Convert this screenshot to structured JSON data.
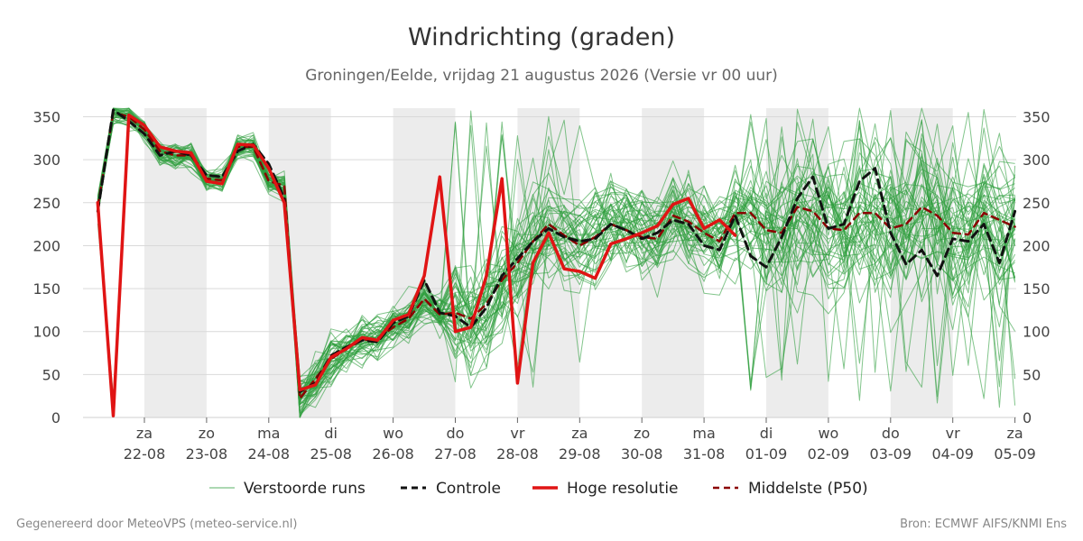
{
  "title": "Windrichting (graden)",
  "subtitle": "Groningen/Eelde, vrijdag 21 augustus 2026 (Versie vr 00 uur)",
  "footer_left": "Gegenereerd door MeteoVPS (meteo-service.nl)",
  "footer_right": "Bron: ECMWF AIFS/KNMI Ens",
  "colors": {
    "ensemble": "#2e9e3e",
    "control": "#111111",
    "high_res": "#e01414",
    "median": "#8b0000",
    "weekend_band": "#ececec",
    "grid": "#d9d9d9"
  },
  "legend": [
    {
      "label": "Verstoorde runs",
      "style": "thin-green"
    },
    {
      "label": "Controle",
      "style": "dashed-black"
    },
    {
      "label": "Hoge resolutie",
      "style": "solid-red"
    },
    {
      "label": "Middelste (P50)",
      "style": "dashed-darkred"
    }
  ],
  "chart_data": {
    "type": "line",
    "ylim": [
      0,
      360
    ],
    "y_ticks": [
      0,
      50,
      100,
      150,
      200,
      250,
      300,
      350
    ],
    "xlim_days": [
      -0.75,
      14.0
    ],
    "x_ticks": [
      {
        "day": "za",
        "date": "22-08",
        "offset": 0
      },
      {
        "day": "zo",
        "date": "23-08",
        "offset": 1
      },
      {
        "day": "ma",
        "date": "24-08",
        "offset": 2
      },
      {
        "day": "di",
        "date": "25-08",
        "offset": 3
      },
      {
        "day": "wo",
        "date": "26-08",
        "offset": 4
      },
      {
        "day": "do",
        "date": "27-08",
        "offset": 5
      },
      {
        "day": "vr",
        "date": "28-08",
        "offset": 6
      },
      {
        "day": "za",
        "date": "29-08",
        "offset": 7
      },
      {
        "day": "zo",
        "date": "30-08",
        "offset": 8
      },
      {
        "day": "ma",
        "date": "31-08",
        "offset": 9
      },
      {
        "day": "di",
        "date": "01-09",
        "offset": 10
      },
      {
        "day": "wo",
        "date": "02-09",
        "offset": 11
      },
      {
        "day": "do",
        "date": "03-09",
        "offset": 12
      },
      {
        "day": "vr",
        "date": "04-09",
        "offset": 13
      },
      {
        "day": "za",
        "date": "05-09",
        "offset": 14
      }
    ],
    "shaded_bands": [
      [
        0,
        1
      ],
      [
        2,
        3
      ],
      [
        4,
        5
      ],
      [
        6,
        7
      ],
      [
        8,
        9
      ],
      [
        10,
        11
      ],
      [
        12,
        13
      ]
    ],
    "series": [
      {
        "name": "Hoge resolutie",
        "kind": "high_res",
        "x": [
          -0.75,
          -0.5,
          -0.25,
          0,
          0.25,
          0.5,
          0.75,
          1,
          1.25,
          1.5,
          1.75,
          2,
          2.25,
          2.5,
          2.75,
          3,
          3.25,
          3.5,
          3.75,
          4,
          4.25,
          4.5,
          4.75,
          5,
          5.25,
          5.5,
          5.75,
          6,
          6.25,
          6.5,
          6.75,
          7,
          7.25,
          7.5,
          7.75,
          8,
          8.25,
          8.5,
          8.75,
          9,
          9.25,
          9.5
        ],
        "y": [
          250,
          2,
          352,
          340,
          315,
          310,
          308,
          275,
          272,
          318,
          317,
          290,
          250,
          32,
          38,
          70,
          80,
          93,
          90,
          113,
          120,
          165,
          280,
          100,
          105,
          165,
          278,
          40,
          180,
          215,
          173,
          170,
          162,
          202,
          208,
          215,
          223,
          248,
          255,
          220,
          230,
          212
        ]
      },
      {
        "name": "Controle",
        "kind": "control",
        "x": [
          -0.75,
          -0.5,
          -0.25,
          0,
          0.25,
          0.5,
          0.75,
          1,
          1.25,
          1.5,
          1.75,
          2,
          2.25,
          2.5,
          2.75,
          3,
          3.25,
          3.5,
          3.75,
          4,
          4.25,
          4.5,
          4.75,
          5,
          5.25,
          5.5,
          5.75,
          6,
          6.25,
          6.5,
          6.75,
          7,
          7.25,
          7.5,
          7.75,
          8,
          8.25,
          8.5,
          8.75,
          9,
          9.25,
          9.5,
          9.75,
          10,
          10.25,
          10.5,
          10.75,
          11,
          11.25,
          11.5,
          11.75,
          12,
          12.25,
          12.5,
          12.75,
          13,
          13.25,
          13.5,
          13.75,
          14
        ],
        "y": [
          240,
          358,
          345,
          330,
          305,
          310,
          305,
          282,
          280,
          310,
          318,
          295,
          255,
          30,
          40,
          72,
          82,
          90,
          88,
          110,
          118,
          160,
          122,
          118,
          105,
          128,
          165,
          185,
          205,
          220,
          210,
          205,
          208,
          225,
          218,
          208,
          215,
          230,
          225,
          200,
          195,
          235,
          188,
          175,
          210,
          255,
          280,
          220,
          225,
          275,
          290,
          215,
          178,
          195,
          165,
          208,
          205,
          225,
          180,
          240
        ]
      },
      {
        "name": "Middelste (P50)",
        "kind": "median",
        "x": [
          -0.75,
          -0.5,
          -0.25,
          0,
          0.25,
          0.5,
          0.75,
          1,
          1.25,
          1.5,
          1.75,
          2,
          2.25,
          2.5,
          2.75,
          3,
          3.25,
          3.5,
          3.75,
          4,
          4.25,
          4.5,
          4.75,
          5,
          5.25,
          5.5,
          5.75,
          6,
          6.25,
          6.5,
          6.75,
          7,
          7.25,
          7.5,
          7.75,
          8,
          8.25,
          8.5,
          8.75,
          9,
          9.25,
          9.5,
          9.75,
          10,
          10.25,
          10.5,
          10.75,
          11,
          11.25,
          11.5,
          11.75,
          12,
          12.25,
          12.5,
          12.75,
          13,
          13.25,
          13.5,
          13.75,
          14
        ],
        "y": [
          245,
          355,
          350,
          335,
          310,
          305,
          305,
          278,
          276,
          315,
          315,
          275,
          270,
          22,
          45,
          68,
          80,
          90,
          92,
          105,
          115,
          138,
          120,
          122,
          115,
          132,
          160,
          180,
          205,
          225,
          212,
          200,
          210,
          225,
          218,
          210,
          208,
          235,
          228,
          215,
          205,
          238,
          238,
          218,
          215,
          245,
          240,
          220,
          218,
          238,
          238,
          220,
          225,
          245,
          235,
          215,
          213,
          238,
          230,
          222
        ]
      }
    ]
  }
}
